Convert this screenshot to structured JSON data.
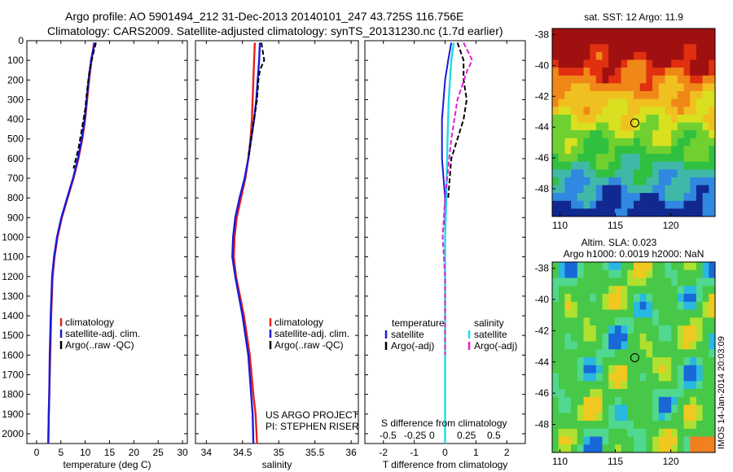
{
  "header": {
    "line1": "Argo profile: AO 5901494_212 31-Dec-2013 20140101_247 43.725S 116.756E",
    "line2": "Climatology: CARS2009. Satellite-adjusted climatology: synTS_20131230.nc (1.7d earlier)"
  },
  "depth_ticks": [
    "0",
    "100",
    "200",
    "300",
    "400",
    "500",
    "600",
    "700",
    "800",
    "900",
    "1000",
    "1100",
    "1200",
    "1300",
    "1400",
    "1500",
    "1600",
    "1700",
    "1800",
    "1900",
    "2000"
  ],
  "watermark": "IMOS 14-Jan-2014 20:03:09",
  "colors": {
    "clim": "#e8211b",
    "sat": "#1a1ad8",
    "argo": "#000000",
    "cyan": "#22d8e8",
    "magenta": "#e020d0"
  },
  "panels": {
    "temp": {
      "xticks": [
        "0",
        "5",
        "10",
        "15",
        "20",
        "25",
        "30"
      ],
      "xlabel": "temperature (deg C)",
      "legend": [
        "climatology",
        "satellite-adj. clim.",
        "Argo(..raw -QC)"
      ]
    },
    "sal": {
      "xticks": [
        "34",
        "34.5",
        "35",
        "35.5",
        "36"
      ],
      "xlabel": "salinity",
      "legend": [
        "climatology",
        "satellite-adj. clim.",
        "Argo(..raw -QC)"
      ],
      "credit1": "US ARGO PROJECT",
      "credit2": "PI: STEPHEN RISER"
    },
    "diff": {
      "xticks": [
        "-2",
        "-1",
        "0",
        "1",
        "2"
      ],
      "top_ticks": [
        "-0.5",
        "-0.25",
        "0",
        "0.25",
        "0.5"
      ],
      "top_label": "S difference from climatology",
      "xlabel": "T difference from climatology",
      "legend_t_head": "temperature",
      "legend_s_head": "salinity",
      "legend_t": [
        "satellite",
        "Argo(-adj)"
      ],
      "legend_s": [
        "satellite",
        "Argo(-adj)"
      ]
    },
    "sst": {
      "title": "sat. SST: 12 Argo: 11.9",
      "yticks": [
        "-38",
        "-40",
        "-42",
        "-44",
        "-46",
        "-48"
      ],
      "xticks": [
        "110",
        "115",
        "120"
      ],
      "marker": {
        "lon": 116.756,
        "lat": -43.725
      }
    },
    "sla": {
      "title1": "Altim. SLA: 0.023",
      "title2": "Argo h1000: 0.0019 h2000: NaN",
      "yticks": [
        "-38",
        "-40",
        "-42",
        "-44",
        "-46",
        "-48"
      ],
      "xticks": [
        "110",
        "115",
        "120"
      ],
      "marker": {
        "lon": 116.756,
        "lat": -43.725
      }
    }
  },
  "chart_data": [
    {
      "type": "line",
      "xlabel": "temperature (deg C)",
      "ylim": [
        2050,
        0
      ],
      "xlim": [
        -2,
        31
      ],
      "series": [
        {
          "name": "climatology",
          "x": [
            11.8,
            11.6,
            11.3,
            10.8,
            10.4,
            10.0,
            9.4,
            8.6,
            7.6,
            6.4,
            5.2,
            4.3,
            3.7,
            3.3,
            3.0,
            2.8,
            2.6,
            2.5,
            2.4
          ],
          "y": [
            10,
            50,
            100,
            200,
            300,
            400,
            500,
            600,
            700,
            800,
            900,
            1000,
            1100,
            1200,
            1400,
            1600,
            1800,
            1900,
            2050
          ]
        },
        {
          "name": "satellite-adj. clim.",
          "x": [
            12.0,
            11.6,
            11.2,
            10.7,
            10.3,
            9.9,
            9.3,
            8.5,
            7.5,
            6.3,
            5.1,
            4.2,
            3.6,
            3.2,
            2.9,
            2.7,
            2.6,
            2.5,
            2.4
          ],
          "y": [
            10,
            50,
            100,
            200,
            300,
            400,
            500,
            600,
            700,
            800,
            900,
            1000,
            1100,
            1200,
            1400,
            1600,
            1800,
            1900,
            2050
          ]
        },
        {
          "name": "Argo(..raw -QC)",
          "x": [
            12.2,
            11.9,
            11.5,
            10.9,
            10.4,
            10.0,
            9.3,
            8.6,
            7.6
          ],
          "y": [
            10,
            40,
            80,
            150,
            250,
            350,
            450,
            550,
            650
          ]
        }
      ]
    },
    {
      "type": "line",
      "xlabel": "salinity",
      "ylim": [
        2050,
        0
      ],
      "xlim": [
        33.85,
        36.1
      ],
      "series": [
        {
          "name": "climatology",
          "x": [
            34.67,
            34.66,
            34.65,
            34.64,
            34.63,
            34.61,
            34.58,
            34.54,
            34.48,
            34.42,
            34.39,
            34.38,
            34.41,
            34.52,
            34.6,
            34.65,
            34.68,
            34.7
          ],
          "y": [
            10,
            100,
            200,
            300,
            400,
            500,
            600,
            700,
            800,
            900,
            1000,
            1100,
            1200,
            1400,
            1600,
            1800,
            1900,
            2050
          ]
        },
        {
          "name": "satellite-adj. clim.",
          "x": [
            34.74,
            34.73,
            34.71,
            34.69,
            34.66,
            34.62,
            34.58,
            34.53,
            34.46,
            34.4,
            34.37,
            34.36,
            34.4,
            34.5,
            34.58,
            34.62,
            34.64,
            34.65
          ],
          "y": [
            10,
            100,
            200,
            300,
            400,
            500,
            600,
            700,
            800,
            900,
            1000,
            1100,
            1200,
            1400,
            1600,
            1800,
            1900,
            2050
          ]
        },
        {
          "name": "Argo(..raw -QC)",
          "x": [
            34.76,
            34.8,
            34.74,
            34.72,
            34.7,
            34.66,
            34.62,
            34.58
          ],
          "y": [
            10,
            100,
            150,
            200,
            300,
            400,
            500,
            600
          ]
        }
      ]
    },
    {
      "type": "line",
      "xlabel": "T difference from climatology",
      "ylim": [
        2050,
        0
      ],
      "xlim": [
        -2.6,
        2.6
      ],
      "series": [
        {
          "name": "temperature satellite",
          "x": [
            0.2,
            0.1,
            0.0,
            -0.1,
            -0.1,
            0.0,
            0.0,
            0.0,
            0.0,
            0.0
          ],
          "y": [
            10,
            100,
            200,
            400,
            600,
            800,
            1000,
            1400,
            1800,
            2050
          ]
        },
        {
          "name": "temperature Argo(-adj)",
          "x": [
            0.4,
            0.6,
            0.6,
            0.7,
            0.6,
            0.4,
            0.2,
            0.1
          ],
          "y": [
            10,
            100,
            200,
            300,
            400,
            500,
            600,
            800
          ]
        },
        {
          "name": "salinity satellite",
          "x": [
            0.07,
            0.05,
            0.03,
            0.02,
            0.01,
            0.0,
            0.0,
            0.0
          ],
          "y": [
            10,
            100,
            300,
            500,
            800,
            1000,
            1400,
            2050
          ]
        },
        {
          "name": "salinity Argo(-adj)",
          "x": [
            0.15,
            0.22,
            0.18,
            0.1,
            0.05,
            0.0,
            -0.02,
            0.0,
            0.0
          ],
          "y": [
            10,
            100,
            150,
            300,
            500,
            800,
            1000,
            1200,
            1600
          ]
        }
      ]
    }
  ]
}
